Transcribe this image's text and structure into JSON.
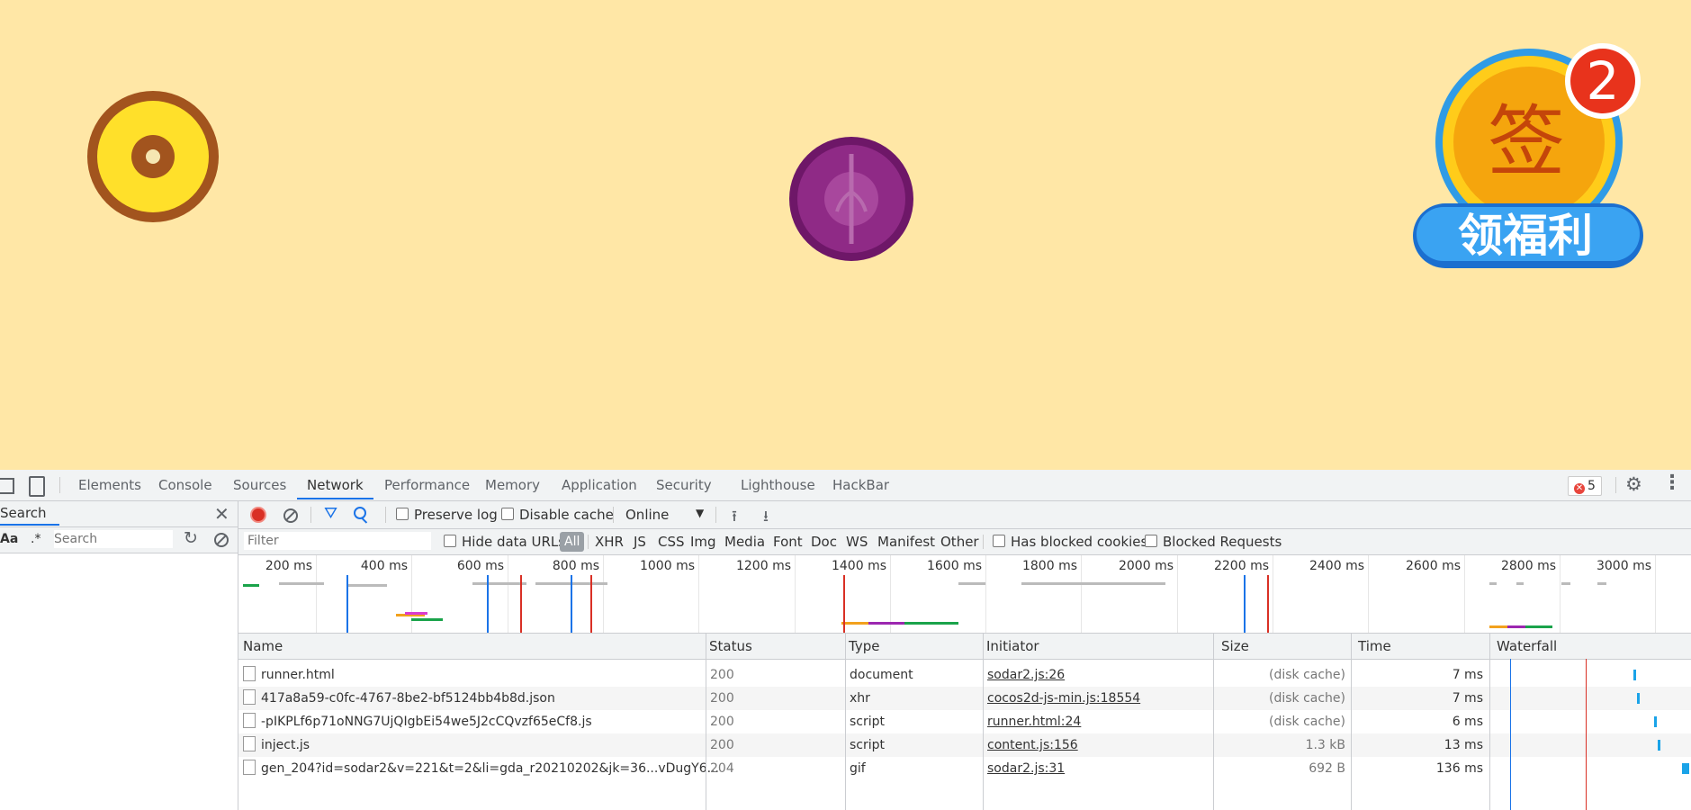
{
  "game": {
    "signin_badge_text": "签",
    "signin_banner_text": "领福利",
    "notification_count": "2"
  },
  "devtools": {
    "tabs": [
      "Elements",
      "Console",
      "Sources",
      "Network",
      "Performance",
      "Memory",
      "Application",
      "Security",
      "Lighthouse",
      "HackBar"
    ],
    "active_tab": "Network",
    "error_count": "5",
    "search_pane": {
      "title": "Search",
      "case_label": "Aa",
      "regex_label": ".*",
      "placeholder": "Search"
    },
    "toolbar": {
      "preserve_log": "Preserve log",
      "disable_cache": "Disable cache",
      "throttle": "Online"
    },
    "filterbar": {
      "placeholder": "Filter",
      "hide_data_urls": "Hide data URLs",
      "types": [
        "All",
        "XHR",
        "JS",
        "CSS",
        "Img",
        "Media",
        "Font",
        "Doc",
        "WS",
        "Manifest",
        "Other"
      ],
      "has_blocked_cookies": "Has blocked cookies",
      "blocked_requests": "Blocked Requests"
    },
    "overview_ticks": [
      "200 ms",
      "400 ms",
      "600 ms",
      "800 ms",
      "1000 ms",
      "1200 ms",
      "1400 ms",
      "1600 ms",
      "1800 ms",
      "2000 ms",
      "2200 ms",
      "2400 ms",
      "2600 ms",
      "2800 ms",
      "3000 ms"
    ],
    "columns": [
      "Name",
      "Status",
      "Type",
      "Initiator",
      "Size",
      "Time",
      "Waterfall"
    ],
    "rows": [
      {
        "name": "runner.html",
        "status": "200",
        "type": "document",
        "initiator": "sodar2.js:26",
        "size": "(disk cache)",
        "time": "7 ms"
      },
      {
        "name": "417a8a59-c0fc-4767-8be2-bf5124bb4b8d.json",
        "status": "200",
        "type": "xhr",
        "initiator": "cocos2d-js-min.js:18554",
        "size": "(disk cache)",
        "time": "7 ms"
      },
      {
        "name": "-pIKPLf6p71oNNG7UjQIgbEi54we5J2cCQvzf65eCf8.js",
        "status": "200",
        "type": "script",
        "initiator": "runner.html:24",
        "size": "(disk cache)",
        "time": "6 ms"
      },
      {
        "name": "inject.js",
        "status": "200",
        "type": "script",
        "initiator": "content.js:156",
        "size": "1.3 kB",
        "time": "13 ms"
      },
      {
        "name": "gen_204?id=sodar2&v=221&t=2&li=gda_r20210202&jk=36...vDugY6...",
        "status": "204",
        "type": "gif",
        "initiator": "sodar2.js:31",
        "size": "692 B",
        "time": "136 ms"
      }
    ]
  }
}
